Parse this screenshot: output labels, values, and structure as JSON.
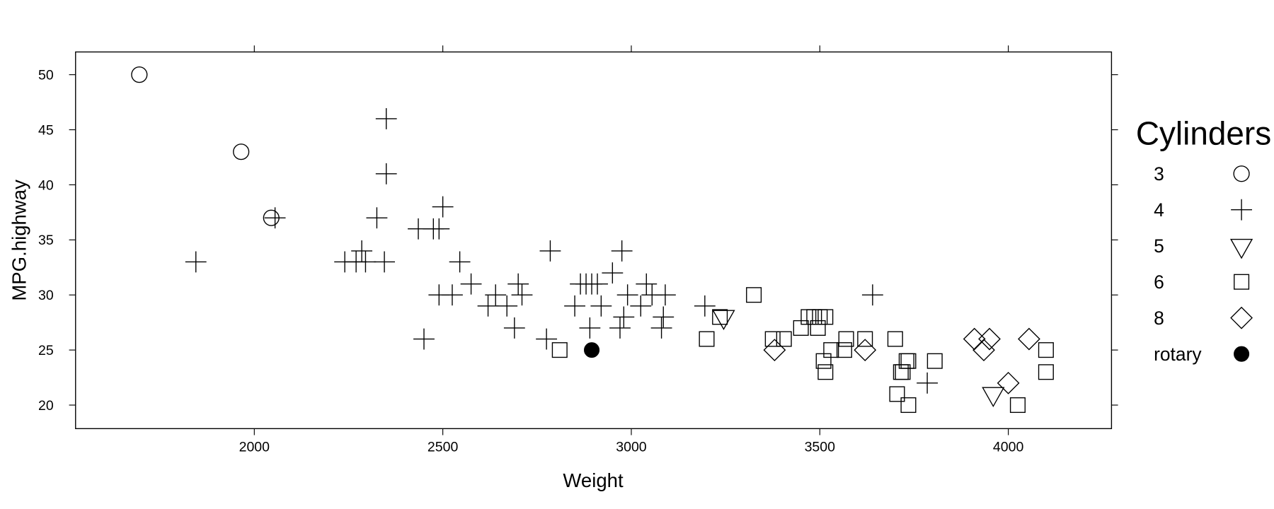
{
  "chart_data": {
    "type": "scatter",
    "title": "",
    "xlabel": "Weight",
    "ylabel": "MPG.highway",
    "xlim": [
      1520,
      4270
    ],
    "ylim": [
      18,
      52
    ],
    "x_ticks": [
      2000,
      2500,
      3000,
      3500,
      4000
    ],
    "y_ticks": [
      20,
      25,
      30,
      35,
      40,
      45,
      50
    ],
    "grid": false,
    "legend": {
      "title": "Cylinders",
      "position": "right",
      "entries": [
        {
          "label": "3",
          "symbol": "circle"
        },
        {
          "label": "4",
          "symbol": "plus"
        },
        {
          "label": "5",
          "symbol": "triangle-down"
        },
        {
          "label": "6",
          "symbol": "square"
        },
        {
          "label": "8",
          "symbol": "diamond"
        },
        {
          "label": "rotary",
          "symbol": "filled-circle"
        }
      ]
    },
    "series": [
      {
        "name": "3",
        "symbol": "circle",
        "points": [
          [
            1695,
            50
          ],
          [
            1965,
            43
          ],
          [
            2045,
            37
          ]
        ]
      },
      {
        "name": "4",
        "symbol": "plus",
        "points": [
          [
            1845,
            33
          ],
          [
            2055,
            37
          ],
          [
            2240,
            33
          ],
          [
            2270,
            33
          ],
          [
            2285,
            34
          ],
          [
            2295,
            33
          ],
          [
            2325,
            37
          ],
          [
            2345,
            33
          ],
          [
            2350,
            46
          ],
          [
            2350,
            41
          ],
          [
            2435,
            36
          ],
          [
            2450,
            26
          ],
          [
            2475,
            36
          ],
          [
            2490,
            30
          ],
          [
            2490,
            36
          ],
          [
            2500,
            38
          ],
          [
            2525,
            30
          ],
          [
            2545,
            33
          ],
          [
            2575,
            31
          ],
          [
            2620,
            29
          ],
          [
            2640,
            30
          ],
          [
            2670,
            29
          ],
          [
            2690,
            27
          ],
          [
            2700,
            31
          ],
          [
            2710,
            30
          ],
          [
            2775,
            26
          ],
          [
            2785,
            34
          ],
          [
            2850,
            29
          ],
          [
            2865,
            31
          ],
          [
            2880,
            31
          ],
          [
            2890,
            27
          ],
          [
            2895,
            31
          ],
          [
            2910,
            31
          ],
          [
            2920,
            29
          ],
          [
            2950,
            32
          ],
          [
            2970,
            27
          ],
          [
            2975,
            34
          ],
          [
            2980,
            28
          ],
          [
            2990,
            30
          ],
          [
            3025,
            29
          ],
          [
            3040,
            31
          ],
          [
            3055,
            30
          ],
          [
            3080,
            27
          ],
          [
            3085,
            28
          ],
          [
            3090,
            30
          ],
          [
            3195,
            29
          ],
          [
            3640,
            30
          ],
          [
            3785,
            22
          ]
        ]
      },
      {
        "name": "5",
        "symbol": "triangle-down",
        "points": [
          [
            3245,
            28
          ],
          [
            3960,
            21
          ]
        ]
      },
      {
        "name": "6",
        "symbol": "square",
        "points": [
          [
            2810,
            25
          ],
          [
            3200,
            26
          ],
          [
            3235,
            28
          ],
          [
            3325,
            30
          ],
          [
            3375,
            26
          ],
          [
            3405,
            26
          ],
          [
            3450,
            27
          ],
          [
            3470,
            28
          ],
          [
            3485,
            28
          ],
          [
            3495,
            27
          ],
          [
            3500,
            28
          ],
          [
            3515,
            28
          ],
          [
            3510,
            24
          ],
          [
            3515,
            23
          ],
          [
            3530,
            25
          ],
          [
            3565,
            25
          ],
          [
            3570,
            26
          ],
          [
            3620,
            26
          ],
          [
            3700,
            26
          ],
          [
            3705,
            21
          ],
          [
            3715,
            23
          ],
          [
            3720,
            23
          ],
          [
            3730,
            24
          ],
          [
            3735,
            24
          ],
          [
            3735,
            20
          ],
          [
            3805,
            24
          ],
          [
            4025,
            20
          ],
          [
            4100,
            25
          ],
          [
            4100,
            23
          ]
        ]
      },
      {
        "name": "8",
        "symbol": "diamond",
        "points": [
          [
            3380,
            25
          ],
          [
            3620,
            25
          ],
          [
            3910,
            26
          ],
          [
            3935,
            25
          ],
          [
            3950,
            26
          ],
          [
            4000,
            22
          ],
          [
            4055,
            26
          ]
        ]
      },
      {
        "name": "rotary",
        "symbol": "filled-circle",
        "points": [
          [
            2895,
            25
          ]
        ]
      }
    ]
  }
}
